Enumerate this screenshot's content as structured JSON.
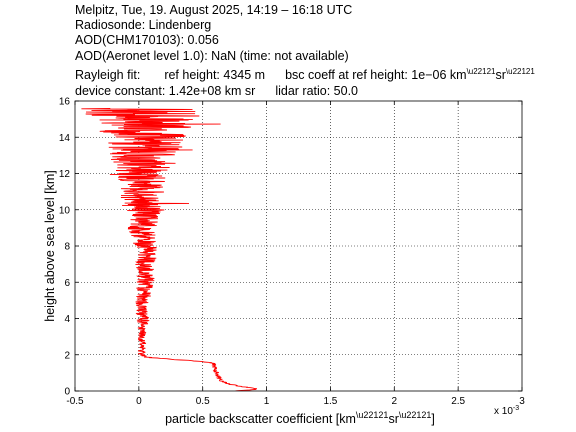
{
  "header": {
    "line1": "Melpitz, Tue, 19. August 2025, 14:19 – 16:18 UTC",
    "line2": "Radiosonde: Lindenberg",
    "line3": "AOD(CHM170103): 0.056",
    "line4": "AOD(Aeronet level 1.0): NaN   (time: not available)",
    "rayleigh_label": "Rayleigh fit:",
    "ref_height": "ref height: 4345 m",
    "bsc_coeff_prefix": "bsc coeff at ref height: 1e−06 km",
    "device_constant": "device constant: 1.42e+08 km sr",
    "lidar_ratio": "lidar ratio: 50.0"
  },
  "chart_data": {
    "type": "line",
    "xlabel_text": "particle backscatter coefficient [km",
    "ylabel": "height above sea level [km]",
    "x_multiplier": "x 10",
    "x_multiplier_exp": "-3",
    "xlim": [
      -0.5,
      3
    ],
    "ylim": [
      0,
      16
    ],
    "x_ticks": [
      "-0.5",
      "0",
      "0.5",
      "1",
      "1.5",
      "2",
      "2.5",
      "3"
    ],
    "y_ticks": [
      "0",
      "2",
      "4",
      "6",
      "8",
      "10",
      "12",
      "14",
      "16"
    ],
    "grid": true,
    "line_color": "#ff0000",
    "series": [
      {
        "y": [
          0.0,
          0.1,
          0.2,
          0.3,
          0.4,
          0.5,
          0.6,
          0.7,
          0.8,
          1.0,
          1.2,
          1.4,
          1.55,
          1.65,
          1.75,
          1.85,
          1.95,
          2.1,
          2.5,
          3.0,
          3.5,
          4.0,
          4.5,
          5.0,
          5.5,
          6.0,
          6.5,
          7.0,
          7.5,
          8.0,
          8.5,
          9.0,
          9.5,
          10.0,
          10.5,
          11.0,
          11.5,
          12.0,
          12.5,
          13.0,
          13.5,
          14.0,
          14.5,
          15.0,
          15.5,
          16.0
        ],
        "x": [
          0.75,
          0.93,
          0.85,
          0.76,
          0.7,
          0.66,
          0.64,
          0.63,
          0.62,
          0.61,
          0.6,
          0.59,
          0.58,
          0.45,
          0.25,
          0.08,
          0.03,
          0.02,
          0.03,
          0.02,
          0.03,
          0.03,
          0.02,
          0.03,
          0.04,
          0.05,
          0.06,
          0.05,
          0.07,
          0.05,
          0.04,
          0.02,
          0.06,
          0.05,
          0.0,
          0.03,
          0.05,
          0.03,
          0.06,
          0.02,
          0.06,
          0.08,
          0.04,
          0.07,
          0.02,
          0.01
        ],
        "noise": [
          0.02,
          0.02,
          0.02,
          0.02,
          0.02,
          0.02,
          0.02,
          0.02,
          0.02,
          0.02,
          0.02,
          0.02,
          0.02,
          0.02,
          0.03,
          0.03,
          0.03,
          0.03,
          0.03,
          0.03,
          0.04,
          0.05,
          0.05,
          0.06,
          0.06,
          0.07,
          0.07,
          0.08,
          0.08,
          0.09,
          0.1,
          0.11,
          0.13,
          0.15,
          0.17,
          0.18,
          0.2,
          0.22,
          0.25,
          0.28,
          0.3,
          0.33,
          0.38,
          0.45,
          0.5,
          0.3
        ]
      }
    ]
  }
}
